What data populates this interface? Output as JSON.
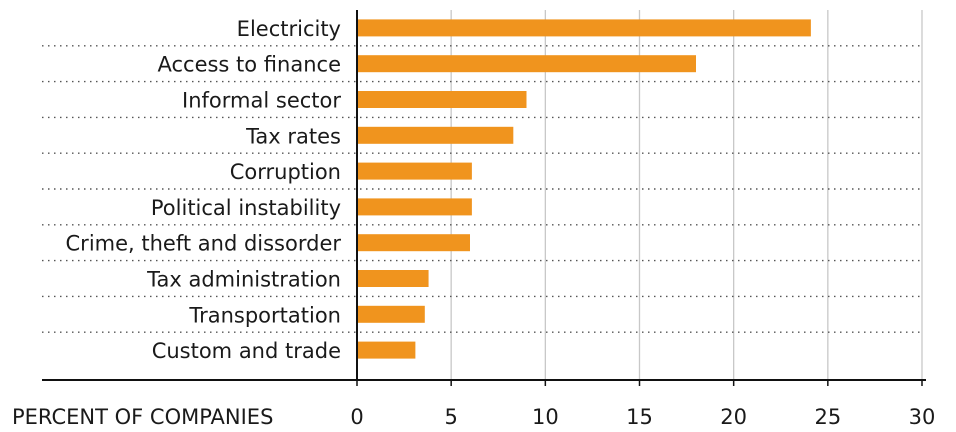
{
  "chart_data": {
    "type": "bar",
    "orientation": "horizontal",
    "categories": [
      "Electricity",
      "Access to finance",
      "Informal sector",
      "Tax rates",
      "Corruption",
      "Political instability",
      "Crime, theft and dissorder",
      "Tax administration",
      "Transportation",
      "Custom and trade"
    ],
    "values": [
      24.1,
      18.0,
      9.0,
      8.3,
      6.1,
      6.1,
      6.0,
      3.8,
      3.6,
      3.1
    ],
    "xlabel": "PERCENT OF COMPANIES",
    "xlim": [
      0,
      30
    ],
    "xticks": [
      "0",
      "5",
      "10",
      "15",
      "20",
      "25",
      "30"
    ],
    "grid": "vertical",
    "bar_color": "#f0941e"
  }
}
